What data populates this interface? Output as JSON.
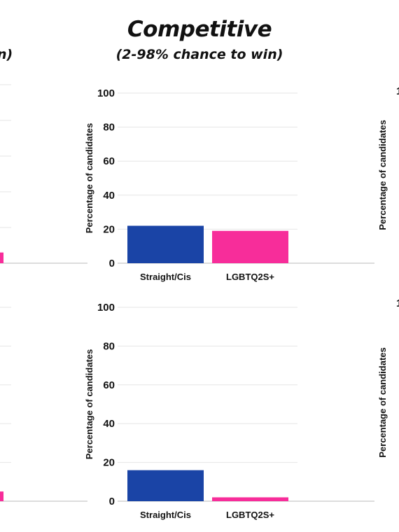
{
  "header": {
    "title": "Competitive",
    "subtitle": "(2-98% chance to win)",
    "left_clipped_text": "n)"
  },
  "colors": {
    "straight": "#1a44a6",
    "lgbtq": "#f72d9a",
    "grid": "#e6e6e6",
    "axis": "#bbbbbb"
  },
  "chart_data": [
    {
      "type": "bar",
      "categories": [
        "Straight/Cis",
        "LGBTQ2S+"
      ],
      "values": [
        22,
        19
      ],
      "ylabel": "Percentage of candidates",
      "yticks": [
        0,
        20,
        40,
        60,
        80,
        100
      ],
      "ylim": [
        0,
        100
      ],
      "grid": true
    },
    {
      "type": "bar",
      "categories": [
        "Straight/Cis",
        "LGBTQ2S+"
      ],
      "values": [
        16,
        2
      ],
      "ylabel": "Percentage of candidates",
      "yticks": [
        0,
        20,
        40,
        60,
        80,
        100
      ],
      "ylim": [
        0,
        100
      ],
      "grid": true
    }
  ],
  "clipped_left_panels": {
    "top_bar_value": 6,
    "bottom_bar_value": 5
  },
  "clipped_right_panels": {
    "ylabel": "Percentage of candidates",
    "top_tick": "1",
    "bottom_tick": "1"
  }
}
